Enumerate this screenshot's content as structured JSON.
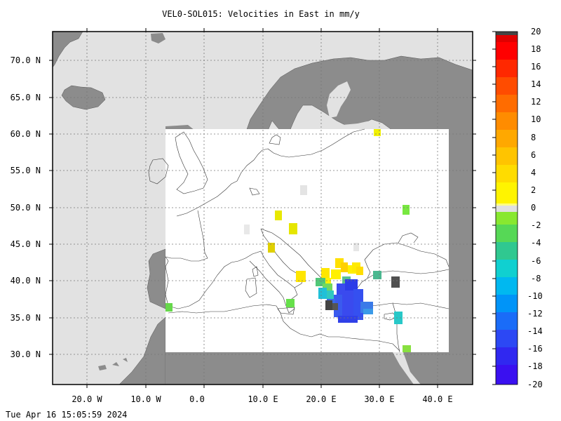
{
  "title": "VEL0-SOL015: Velocities in East in mm/y",
  "timestamp": "Tue Apr 16 15:05:59 2024",
  "map": {
    "lon_range": [
      -26,
      46
    ],
    "lat_range": [
      26,
      74
    ],
    "data_region": {
      "lon": [
        -6.5,
        42
      ],
      "lat": [
        30.5,
        61
      ]
    },
    "lat_ticks": [
      "70.0 N",
      "65.0 N",
      "60.0 N",
      "55.0 N",
      "50.0 N",
      "45.0 N",
      "40.0 N",
      "35.0 N",
      "30.0 N"
    ],
    "lon_ticks": [
      "20.0 W",
      "10.0 W",
      "0.0",
      "10.0 E",
      "20.0 E",
      "30.0 E",
      "40.0 E"
    ],
    "colors": {
      "land": "#8c8c8c",
      "ocean": "#e2e2e2",
      "data_area": "#ffffff",
      "grid": "#777777"
    }
  },
  "colorbar": {
    "min": -20,
    "max": 20,
    "labels": [
      "20",
      "18",
      "16",
      "14",
      "12",
      "10",
      "8",
      "6",
      "4",
      "2",
      "0",
      "-2",
      "-4",
      "-6",
      "-8",
      "-10",
      "-12",
      "-14",
      "-16",
      "-18",
      "-20"
    ]
  }
}
